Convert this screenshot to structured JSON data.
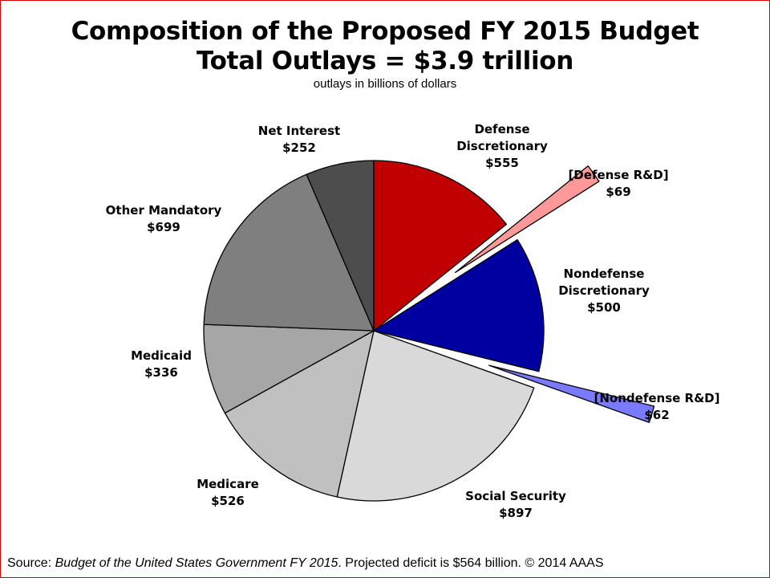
{
  "title": "Composition of the Proposed FY 2015 Budget",
  "title_line2": "Total Outlays = $3.9 trillion",
  "subtitle": "outlays in billions of dollars",
  "footer": {
    "prefix": "Source: ",
    "source": "Budget of the United States Government FY 2015",
    "suffix": ". Projected deficit is $564 billion. © 2014 AAAS"
  },
  "chart_data": {
    "type": "pie",
    "title": "Composition of the Proposed FY 2015 Budget",
    "subtitle": "Total Outlays = $3.9 trillion",
    "units": "outlays in billions of dollars",
    "slices": [
      {
        "name": "Defense Discretionary",
        "lines": [
          "Defense",
          "Discretionary"
        ],
        "value_label": "$555",
        "value": 555,
        "color": "#c00000",
        "exploded": false
      },
      {
        "name": "[Defense R&D]",
        "lines": [
          "[Defense R&D]"
        ],
        "value_label": "$69",
        "value": 69,
        "color": "#ff9999",
        "exploded": true
      },
      {
        "name": "Nondefense Discretionary",
        "lines": [
          "Nondefense",
          "Discretionary"
        ],
        "value_label": "$500",
        "value": 500,
        "color": "#0000a0",
        "exploded": false
      },
      {
        "name": "[Nondefense R&D]",
        "lines": [
          "[Nondefense R&D]"
        ],
        "value_label": "$62",
        "value": 62,
        "color": "#7a7aff",
        "exploded": true
      },
      {
        "name": "Social Security",
        "lines": [
          "Social Security"
        ],
        "value_label": "$897",
        "value": 897,
        "color": "#d9d9d9",
        "exploded": false
      },
      {
        "name": "Medicare",
        "lines": [
          "Medicare"
        ],
        "value_label": "$526",
        "value": 526,
        "color": "#c0c0c0",
        "exploded": false
      },
      {
        "name": "Medicaid",
        "lines": [
          "Medicaid"
        ],
        "value_label": "$336",
        "value": 336,
        "color": "#a6a6a6",
        "exploded": false
      },
      {
        "name": "Other Mandatory",
        "lines": [
          "Other Mandatory"
        ],
        "value_label": "$699",
        "value": 699,
        "color": "#7f7f7f",
        "exploded": false
      },
      {
        "name": "Net Interest",
        "lines": [
          "Net Interest"
        ],
        "value_label": "$252",
        "value": 252,
        "color": "#4d4d4d",
        "exploded": false
      }
    ]
  }
}
